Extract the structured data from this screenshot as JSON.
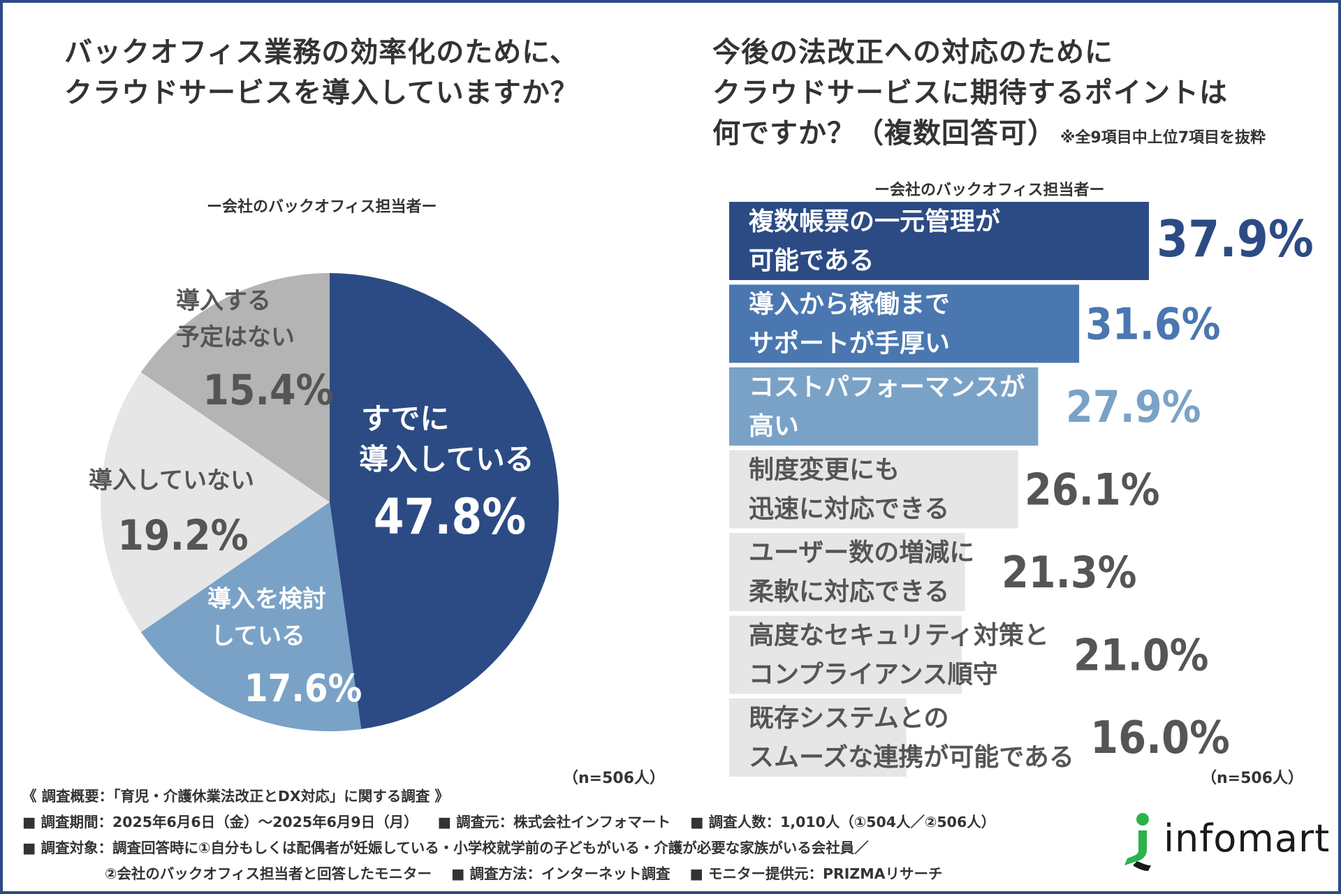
{
  "left": {
    "title": [
      "バックオフィス業務の効率化のために、",
      "クラウドサービスを導入していますか？"
    ],
    "subtitle": "ー会社のバックオフィス担当者ー",
    "n_label": "（n=506人）"
  },
  "right": {
    "title": [
      "今後の法改正への対応のために",
      "クラウドサービスに期待するポイントは",
      "何ですか？（複数回答可）"
    ],
    "note": "※全9項目中上位7項目を抜粋",
    "subtitle": "ー会社のバックオフィス担当者ー",
    "n_label": "（n=506人）"
  },
  "chart_data": [
    {
      "type": "pie",
      "title": "バックオフィス業務の効率化のために、クラウドサービスを導入していますか？",
      "labels": [
        "すでに導入している",
        "導入を検討している",
        "導入していない",
        "導入する予定はない"
      ],
      "values": [
        47.8,
        17.6,
        19.2,
        15.4
      ],
      "slices": [
        {
          "label_lines": [
            "すでに",
            "導入している"
          ],
          "value": 47.8,
          "value_text": "47.8%",
          "color": "#2c4b84",
          "text_color": "#ffffff"
        },
        {
          "label_lines": [
            "導入を検討",
            "している"
          ],
          "value": 17.6,
          "value_text": "17.6%",
          "color": "#7aa2c7",
          "text_color": "#ffffff"
        },
        {
          "label_lines": [
            "導入していない"
          ],
          "value": 19.2,
          "value_text": "19.2%",
          "color": "#e6e6e6",
          "text_color": "#555555"
        },
        {
          "label_lines": [
            "導入する",
            "予定はない"
          ],
          "value": 15.4,
          "value_text": "15.4%",
          "color": "#b4b4b4",
          "text_color": "#555555"
        }
      ]
    },
    {
      "type": "bar",
      "orientation": "horizontal",
      "title": "今後の法改正への対応のためにクラウドサービスに期待するポイントは何ですか？（複数回答可）",
      "categories": [
        "複数帳票の一元管理が可能である",
        "導入から稼働までサポートが手厚い",
        "コストパフォーマンスが高い",
        "制度変更にも迅速に対応できる",
        "ユーザー数の増減に柔軟に対応できる",
        "高度なセキュリティ対策とコンプライアンス順守",
        "既存システムとのスムーズな連携が可能である"
      ],
      "values": [
        37.9,
        31.6,
        27.9,
        26.1,
        21.3,
        21.0,
        16.0
      ],
      "bars": [
        {
          "label_lines": [
            "複数帳票の一元管理が",
            "可能である"
          ],
          "value": 37.9,
          "value_text": "37.9%",
          "color": "#2c4b84",
          "label_color": "#ffffff",
          "value_color": "#2c4b84"
        },
        {
          "label_lines": [
            "導入から稼働まで",
            "サポートが手厚い"
          ],
          "value": 31.6,
          "value_text": "31.6%",
          "color": "#4a77b0",
          "label_color": "#ffffff",
          "value_color": "#4a77b0"
        },
        {
          "label_lines": [
            "コストパフォーマンスが",
            "高い"
          ],
          "value": 27.9,
          "value_text": "27.9%",
          "color": "#7aa2c7",
          "label_color": "#ffffff",
          "value_color": "#7aa2c7"
        },
        {
          "label_lines": [
            "制度変更にも",
            "迅速に対応できる"
          ],
          "value": 26.1,
          "value_text": "26.1%",
          "color": "#e6e6e6",
          "label_color": "#555555",
          "value_color": "#555555"
        },
        {
          "label_lines": [
            "ユーザー数の増減に",
            "柔軟に対応できる"
          ],
          "value": 21.3,
          "value_text": "21.3%",
          "color": "#e6e6e6",
          "label_color": "#555555",
          "value_color": "#555555"
        },
        {
          "label_lines": [
            "高度なセキュリティ対策と",
            "コンプライアンス順守"
          ],
          "value": 21.0,
          "value_text": "21.0%",
          "color": "#e6e6e6",
          "label_color": "#555555",
          "value_color": "#555555"
        },
        {
          "label_lines": [
            "既存システムとの",
            "スムーズな連携が可能である"
          ],
          "value": 16.0,
          "value_text": "16.0%",
          "color": "#e6e6e6",
          "label_color": "#555555",
          "value_color": "#555555"
        }
      ]
    }
  ],
  "footer": {
    "summary": "《 調査概要：「育児・介護休業法改正とDX対応」に関する調査 》",
    "period": "■ 調査期間：2025年6月6日（金）～2025年6月9日（月）",
    "source": "■ 調査元：株式会社インフォマート",
    "count": "■ 調査人数：1,010人（①504人／②506人）",
    "target1": "■ 調査対象：調査回答時に①自分もしくは配偶者が妊娠している・小学校就学前の子どもがいる・介護が必要な家族がいる会社員／",
    "target2": "②会社のバックオフィス担当者と回答したモニター",
    "method": "■ 調査方法：インターネット調査",
    "provider": "■ モニター提供元：PRIZMAリサーチ"
  },
  "logo": {
    "text": "infomart",
    "colors": {
      "green": "#2bb34a",
      "dark": "#1a1a1a"
    }
  }
}
